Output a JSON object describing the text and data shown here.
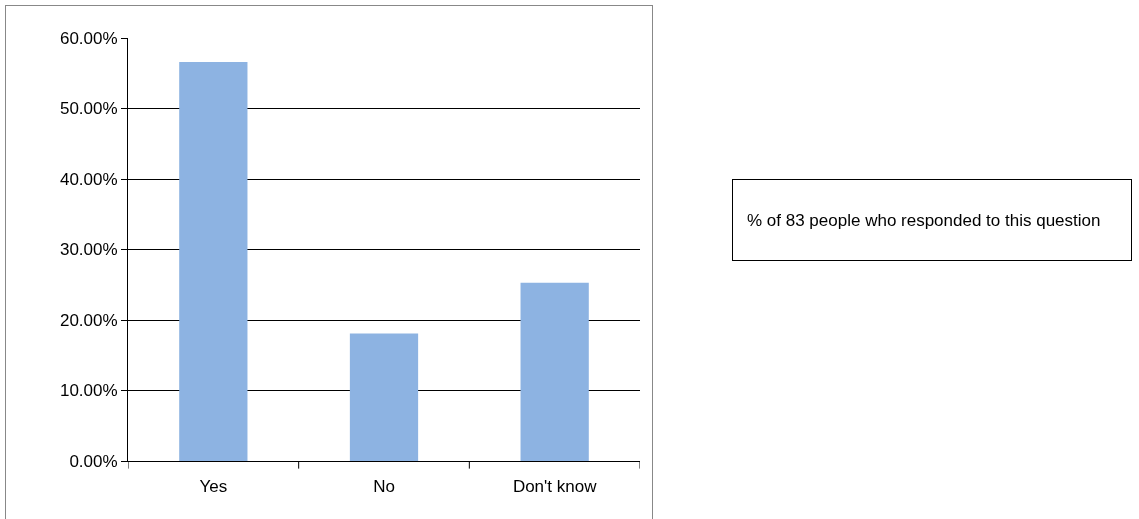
{
  "chart_data": {
    "type": "bar",
    "categories": [
      "Yes",
      "No",
      "Don't know"
    ],
    "values": [
      56.6,
      18.1,
      25.3
    ],
    "color": "#8db3e2",
    "ylim": [
      0,
      60
    ],
    "yticks": [
      {
        "value": 0,
        "label": "0.00%"
      },
      {
        "value": 10,
        "label": "10.00%"
      },
      {
        "value": 20,
        "label": "20.00%"
      },
      {
        "value": 30,
        "label": "30.00%"
      },
      {
        "value": 40,
        "label": "40.00%"
      },
      {
        "value": 50,
        "label": "50.00%"
      },
      {
        "value": 60,
        "label": "60.00%"
      }
    ],
    "grid": "y",
    "annotations": [
      "% of 83 people who responded to this question"
    ]
  }
}
